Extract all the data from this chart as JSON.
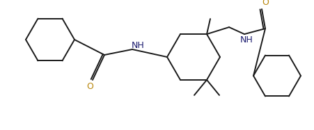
{
  "bg_color": "#ffffff",
  "line_color": "#1a1a1a",
  "nh_color": "#1a1a6e",
  "o_color": "#b8860b",
  "line_width": 1.4,
  "fig_width": 4.51,
  "fig_height": 1.87,
  "dpi": 100,
  "xlim": [
    0,
    451
  ],
  "ylim": [
    0,
    187
  ]
}
